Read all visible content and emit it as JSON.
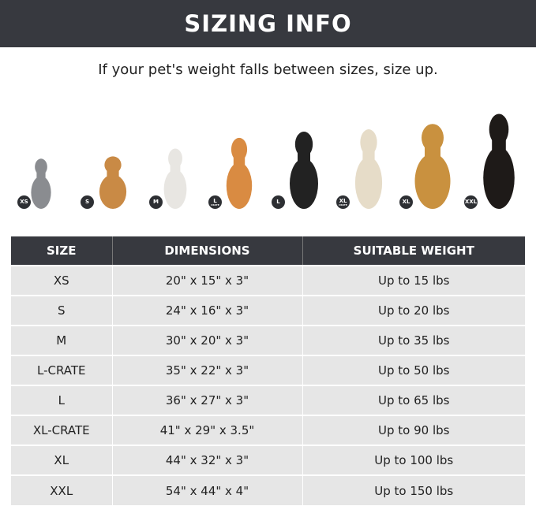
{
  "header": {
    "title": "SIZING INFO"
  },
  "subtitle": "If your pet's weight falls between sizes, size up.",
  "pets": [
    {
      "badge": "XS",
      "sub": "",
      "animal": "cat",
      "color": "#8a8c90"
    },
    {
      "badge": "S",
      "sub": "",
      "animal": "pomeranian",
      "color": "#c98a45"
    },
    {
      "badge": "M",
      "sub": "",
      "animal": "french-bulldog",
      "color": "#e8e6e2"
    },
    {
      "badge": "L",
      "sub": "CRATE",
      "animal": "shiba-inu",
      "color": "#d98b42"
    },
    {
      "badge": "L",
      "sub": "",
      "animal": "border-collie",
      "color": "#222222"
    },
    {
      "badge": "XL",
      "sub": "CRATE",
      "animal": "labrador",
      "color": "#e6dcc8"
    },
    {
      "badge": "XL",
      "sub": "",
      "animal": "golden-retriever",
      "color": "#c9913f"
    },
    {
      "badge": "XXL",
      "sub": "",
      "animal": "doberman",
      "color": "#1e1a18"
    }
  ],
  "table": {
    "headers": [
      "SIZE",
      "DIMENSIONS",
      "SUITABLE WEIGHT"
    ],
    "rows": [
      [
        "XS",
        "20\" x 15\" x 3\"",
        "Up to 15 lbs"
      ],
      [
        "S",
        "24\" x 16\" x 3\"",
        "Up to 20 lbs"
      ],
      [
        "M",
        "30\" x 20\" x 3\"",
        "Up to 35 lbs"
      ],
      [
        "L-CRATE",
        "35\" x 22\" x 3\"",
        "Up to 50 lbs"
      ],
      [
        "L",
        "36\" x 27\" x 3\"",
        "Up to 65 lbs"
      ],
      [
        "XL-CRATE",
        "41\" x 29\" x 3.5\"",
        "Up to 90 lbs"
      ],
      [
        "XL",
        "44\" x 32\" x 3\"",
        "Up to 100 lbs"
      ],
      [
        "XXL",
        "54\" x 44\" x 4\"",
        "Up to 150 lbs"
      ]
    ]
  }
}
